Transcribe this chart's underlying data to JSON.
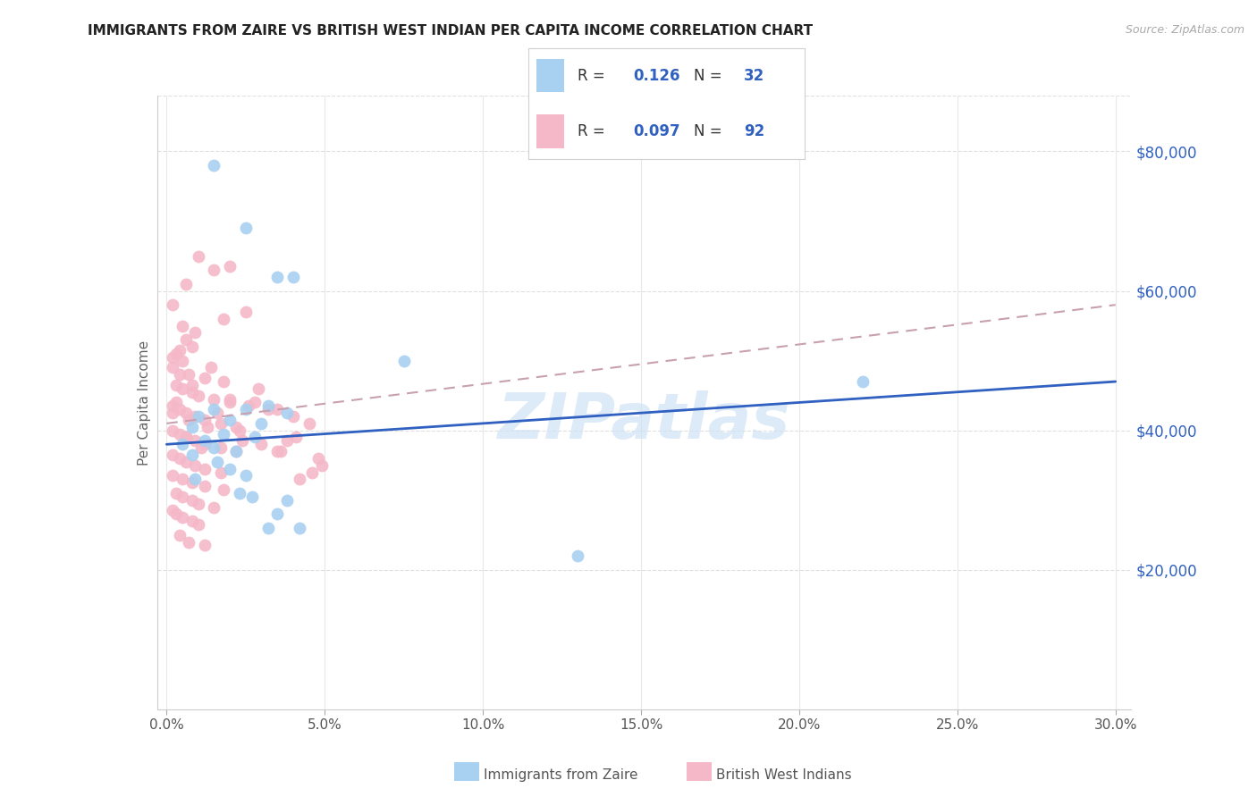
{
  "title": "IMMIGRANTS FROM ZAIRE VS BRITISH WEST INDIAN PER CAPITA INCOME CORRELATION CHART",
  "source": "Source: ZipAtlas.com",
  "xlabel_ticks": [
    "0.0%",
    "5.0%",
    "10.0%",
    "15.0%",
    "20.0%",
    "25.0%",
    "30.0%"
  ],
  "xlabel_vals": [
    0,
    5,
    10,
    15,
    20,
    25,
    30
  ],
  "ylabel": "Per Capita Income",
  "ylabel_ticks": [
    "$20,000",
    "$40,000",
    "$60,000",
    "$80,000"
  ],
  "ylabel_vals": [
    20000,
    40000,
    60000,
    80000
  ],
  "xlim": [
    0,
    30
  ],
  "ylim": [
    0,
    88000
  ],
  "watermark": "ZIPatlas",
  "legend_R1": "0.126",
  "legend_N1": "32",
  "legend_R2": "0.097",
  "legend_N2": "92",
  "blue_color": "#a8d0f0",
  "pink_color": "#f5b8c8",
  "blue_line_color": "#3060c0",
  "pink_line_color": "#d08898",
  "zaire_points": [
    [
      1.5,
      78000
    ],
    [
      2.5,
      69000
    ],
    [
      3.5,
      62000
    ],
    [
      4.0,
      62000
    ],
    [
      7.5,
      50000
    ],
    [
      1.5,
      43000
    ],
    [
      2.5,
      43000
    ],
    [
      3.2,
      43500
    ],
    [
      3.8,
      42500
    ],
    [
      1.0,
      42000
    ],
    [
      2.0,
      41500
    ],
    [
      3.0,
      41000
    ],
    [
      0.8,
      40500
    ],
    [
      1.8,
      39500
    ],
    [
      2.8,
      39000
    ],
    [
      1.2,
      38500
    ],
    [
      0.5,
      38000
    ],
    [
      1.5,
      37500
    ],
    [
      2.2,
      37000
    ],
    [
      0.8,
      36500
    ],
    [
      1.6,
      35500
    ],
    [
      2.0,
      34500
    ],
    [
      2.5,
      33500
    ],
    [
      0.9,
      33000
    ],
    [
      2.3,
      31000
    ],
    [
      2.7,
      30500
    ],
    [
      3.8,
      30000
    ],
    [
      3.5,
      28000
    ],
    [
      3.2,
      26000
    ],
    [
      4.2,
      26000
    ],
    [
      13.0,
      22000
    ],
    [
      22.0,
      47000
    ]
  ],
  "bwi_points": [
    [
      0.2,
      58000
    ],
    [
      0.5,
      55000
    ],
    [
      0.6,
      53000
    ],
    [
      0.8,
      52000
    ],
    [
      0.3,
      51000
    ],
    [
      0.5,
      50000
    ],
    [
      0.2,
      49000
    ],
    [
      0.4,
      48000
    ],
    [
      0.7,
      48000
    ],
    [
      1.0,
      65000
    ],
    [
      1.5,
      63000
    ],
    [
      2.0,
      63500
    ],
    [
      2.5,
      57000
    ],
    [
      1.2,
      47500
    ],
    [
      1.8,
      47000
    ],
    [
      0.3,
      46500
    ],
    [
      0.5,
      46000
    ],
    [
      0.8,
      45500
    ],
    [
      1.0,
      45000
    ],
    [
      1.5,
      44500
    ],
    [
      2.0,
      44000
    ],
    [
      0.2,
      43500
    ],
    [
      0.4,
      43000
    ],
    [
      0.6,
      42500
    ],
    [
      0.9,
      42000
    ],
    [
      1.2,
      41500
    ],
    [
      1.7,
      41000
    ],
    [
      2.2,
      40500
    ],
    [
      0.2,
      40000
    ],
    [
      0.4,
      39500
    ],
    [
      0.6,
      39000
    ],
    [
      0.9,
      38500
    ],
    [
      1.2,
      38000
    ],
    [
      1.7,
      37500
    ],
    [
      2.2,
      37000
    ],
    [
      0.2,
      36500
    ],
    [
      0.4,
      36000
    ],
    [
      0.6,
      35500
    ],
    [
      0.9,
      35000
    ],
    [
      1.2,
      34500
    ],
    [
      1.7,
      34000
    ],
    [
      0.2,
      33500
    ],
    [
      0.5,
      33000
    ],
    [
      0.8,
      32500
    ],
    [
      1.2,
      32000
    ],
    [
      1.8,
      31500
    ],
    [
      0.3,
      31000
    ],
    [
      0.5,
      30500
    ],
    [
      0.8,
      30000
    ],
    [
      1.0,
      29500
    ],
    [
      1.5,
      29000
    ],
    [
      0.2,
      28500
    ],
    [
      0.3,
      28000
    ],
    [
      0.5,
      27500
    ],
    [
      0.8,
      27000
    ],
    [
      1.0,
      26500
    ],
    [
      0.4,
      25000
    ],
    [
      0.7,
      24000
    ],
    [
      1.2,
      23500
    ],
    [
      0.3,
      44000
    ],
    [
      0.6,
      39000
    ],
    [
      1.1,
      37500
    ],
    [
      2.8,
      44000
    ],
    [
      3.5,
      43000
    ],
    [
      4.5,
      41000
    ],
    [
      4.0,
      42000
    ],
    [
      3.2,
      43000
    ],
    [
      2.0,
      44500
    ],
    [
      0.2,
      50500
    ],
    [
      0.4,
      51500
    ],
    [
      0.8,
      46500
    ],
    [
      1.6,
      42500
    ],
    [
      2.3,
      40000
    ],
    [
      3.0,
      38000
    ],
    [
      4.2,
      33000
    ],
    [
      4.8,
      36000
    ],
    [
      3.5,
      37000
    ],
    [
      0.9,
      54000
    ],
    [
      1.4,
      49000
    ],
    [
      2.6,
      43500
    ],
    [
      3.8,
      38500
    ],
    [
      4.6,
      34000
    ],
    [
      0.6,
      61000
    ],
    [
      1.8,
      56000
    ],
    [
      2.9,
      46000
    ],
    [
      4.1,
      39000
    ],
    [
      0.2,
      42500
    ],
    [
      0.7,
      41500
    ],
    [
      1.3,
      40500
    ],
    [
      2.4,
      38500
    ],
    [
      3.6,
      37000
    ],
    [
      4.9,
      35000
    ]
  ]
}
